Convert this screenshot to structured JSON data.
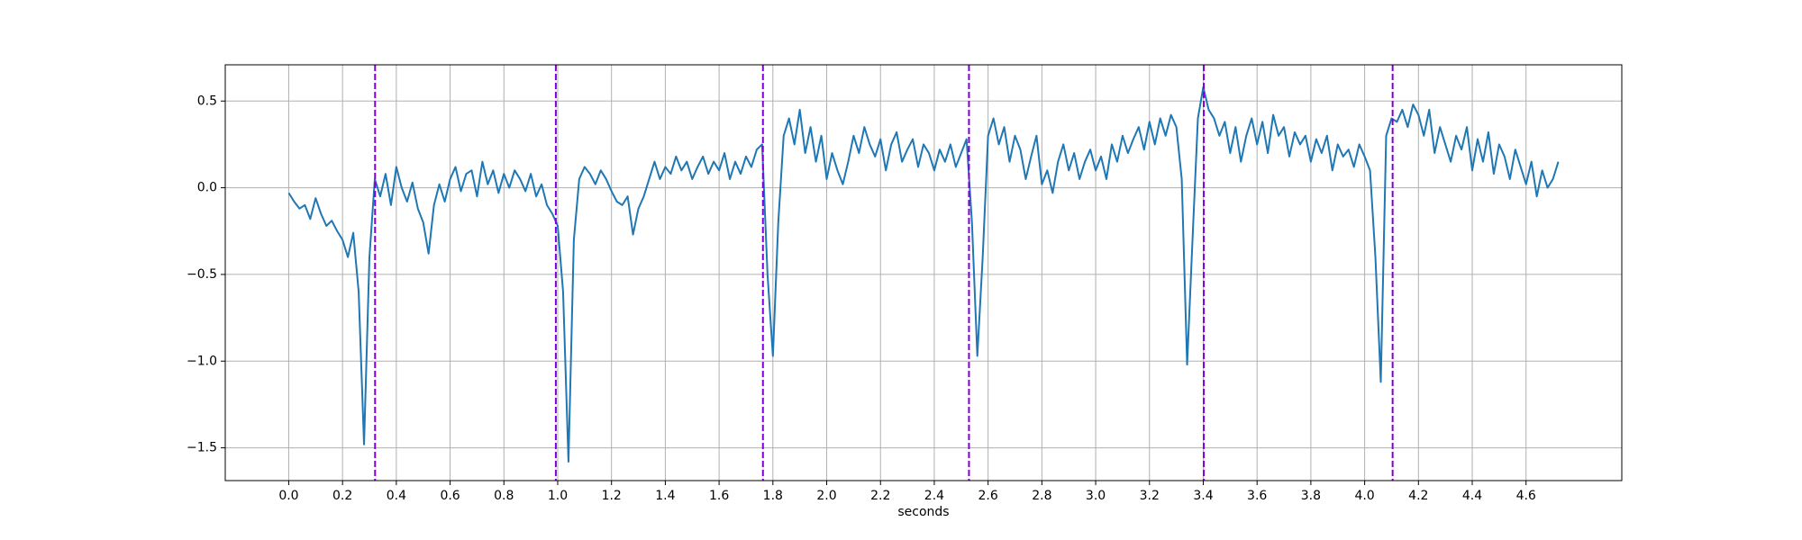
{
  "chart_data": {
    "type": "line",
    "xlabel": "seconds",
    "x": [
      0.0,
      0.02,
      0.04,
      0.06,
      0.08,
      0.1,
      0.12,
      0.14,
      0.16,
      0.18,
      0.2,
      0.22,
      0.24,
      0.26,
      0.28,
      0.3,
      0.32,
      0.34,
      0.36,
      0.38,
      0.4,
      0.42,
      0.44,
      0.46,
      0.48,
      0.5,
      0.52,
      0.54,
      0.56,
      0.58,
      0.6,
      0.62,
      0.64,
      0.66,
      0.68,
      0.7,
      0.72,
      0.74,
      0.76,
      0.78,
      0.8,
      0.82,
      0.84,
      0.86,
      0.88,
      0.9,
      0.92,
      0.94,
      0.96,
      0.98,
      1.0,
      1.02,
      1.04,
      1.06,
      1.08,
      1.1,
      1.12,
      1.14,
      1.16,
      1.18,
      1.2,
      1.22,
      1.24,
      1.26,
      1.28,
      1.3,
      1.32,
      1.34,
      1.36,
      1.38,
      1.4,
      1.42,
      1.44,
      1.46,
      1.48,
      1.5,
      1.52,
      1.54,
      1.56,
      1.58,
      1.6,
      1.62,
      1.64,
      1.66,
      1.68,
      1.7,
      1.72,
      1.74,
      1.76,
      1.78,
      1.8,
      1.82,
      1.84,
      1.86,
      1.88,
      1.9,
      1.92,
      1.94,
      1.96,
      1.98,
      2.0,
      2.02,
      2.04,
      2.06,
      2.08,
      2.1,
      2.12,
      2.14,
      2.16,
      2.18,
      2.2,
      2.22,
      2.24,
      2.26,
      2.28,
      2.3,
      2.32,
      2.34,
      2.36,
      2.38,
      2.4,
      2.42,
      2.44,
      2.46,
      2.48,
      2.5,
      2.52,
      2.54,
      2.56,
      2.58,
      2.6,
      2.62,
      2.64,
      2.66,
      2.68,
      2.7,
      2.72,
      2.74,
      2.76,
      2.78,
      2.8,
      2.82,
      2.84,
      2.86,
      2.88,
      2.9,
      2.92,
      2.94,
      2.96,
      2.98,
      3.0,
      3.02,
      3.04,
      3.06,
      3.08,
      3.1,
      3.12,
      3.14,
      3.16,
      3.18,
      3.2,
      3.22,
      3.24,
      3.26,
      3.28,
      3.3,
      3.32,
      3.34,
      3.36,
      3.38,
      3.4,
      3.42,
      3.44,
      3.46,
      3.48,
      3.5,
      3.52,
      3.54,
      3.56,
      3.58,
      3.6,
      3.62,
      3.64,
      3.66,
      3.68,
      3.7,
      3.72,
      3.74,
      3.76,
      3.78,
      3.8,
      3.82,
      3.84,
      3.86,
      3.88,
      3.9,
      3.92,
      3.94,
      3.96,
      3.98,
      4.0,
      4.02,
      4.04,
      4.06,
      4.08,
      4.1,
      4.12,
      4.14,
      4.16,
      4.18,
      4.2,
      4.22,
      4.24,
      4.26,
      4.28,
      4.3,
      4.32,
      4.34,
      4.36,
      4.38,
      4.4,
      4.42,
      4.44,
      4.46,
      4.48,
      4.5,
      4.52,
      4.54,
      4.56,
      4.58,
      4.6,
      4.62,
      4.64,
      4.66,
      4.68,
      4.7,
      4.72
    ],
    "series": [
      {
        "color": "#1f77b4",
        "values": [
          -0.03,
          -0.08,
          -0.12,
          -0.1,
          -0.18,
          -0.06,
          -0.15,
          -0.22,
          -0.19,
          -0.25,
          -0.3,
          -0.4,
          -0.26,
          -0.6,
          -1.48,
          -0.4,
          0.05,
          -0.05,
          0.08,
          -0.1,
          0.12,
          0.0,
          -0.08,
          0.03,
          -0.12,
          -0.2,
          -0.38,
          -0.1,
          0.02,
          -0.08,
          0.05,
          0.12,
          -0.02,
          0.08,
          0.1,
          -0.05,
          0.15,
          0.02,
          0.1,
          -0.03,
          0.08,
          0.0,
          0.1,
          0.05,
          -0.02,
          0.08,
          -0.05,
          0.02,
          -0.1,
          -0.15,
          -0.22,
          -0.6,
          -1.58,
          -0.3,
          0.05,
          0.12,
          0.08,
          0.02,
          0.1,
          0.05,
          -0.02,
          -0.08,
          -0.1,
          -0.05,
          -0.27,
          -0.12,
          -0.05,
          0.05,
          0.15,
          0.05,
          0.12,
          0.08,
          0.18,
          0.1,
          0.15,
          0.05,
          0.12,
          0.18,
          0.08,
          0.15,
          0.1,
          0.2,
          0.05,
          0.15,
          0.08,
          0.18,
          0.12,
          0.22,
          0.25,
          -0.5,
          -0.97,
          -0.2,
          0.3,
          0.4,
          0.25,
          0.45,
          0.2,
          0.35,
          0.15,
          0.3,
          0.05,
          0.2,
          0.1,
          0.02,
          0.15,
          0.3,
          0.2,
          0.35,
          0.25,
          0.18,
          0.28,
          0.1,
          0.25,
          0.32,
          0.15,
          0.22,
          0.28,
          0.12,
          0.25,
          0.2,
          0.1,
          0.22,
          0.15,
          0.25,
          0.12,
          0.2,
          0.28,
          -0.2,
          -0.97,
          -0.4,
          0.3,
          0.4,
          0.25,
          0.35,
          0.15,
          0.3,
          0.22,
          0.05,
          0.18,
          0.3,
          0.02,
          0.1,
          -0.03,
          0.15,
          0.25,
          0.1,
          0.2,
          0.05,
          0.15,
          0.22,
          0.1,
          0.18,
          0.05,
          0.25,
          0.15,
          0.3,
          0.2,
          0.28,
          0.35,
          0.22,
          0.38,
          0.25,
          0.4,
          0.3,
          0.42,
          0.35,
          0.05,
          -1.02,
          -0.3,
          0.4,
          0.58,
          0.45,
          0.4,
          0.3,
          0.38,
          0.2,
          0.35,
          0.15,
          0.3,
          0.4,
          0.25,
          0.38,
          0.2,
          0.42,
          0.3,
          0.35,
          0.18,
          0.32,
          0.25,
          0.3,
          0.15,
          0.28,
          0.2,
          0.3,
          0.1,
          0.25,
          0.18,
          0.22,
          0.12,
          0.25,
          0.18,
          0.1,
          -0.4,
          -1.12,
          0.3,
          0.4,
          0.38,
          0.45,
          0.35,
          0.48,
          0.42,
          0.3,
          0.45,
          0.2,
          0.35,
          0.25,
          0.15,
          0.3,
          0.22,
          0.35,
          0.1,
          0.28,
          0.15,
          0.32,
          0.08,
          0.25,
          0.18,
          0.05,
          0.22,
          0.12,
          0.02,
          0.15,
          -0.05,
          0.1,
          0.0,
          0.05,
          0.15
        ]
      }
    ],
    "vlines": {
      "x": [
        0.321,
        0.993,
        1.763,
        2.529,
        3.402,
        4.104
      ],
      "color": "#7f00d4",
      "linestyle": "dashed"
    },
    "xlim": [
      -0.236,
      4.956
    ],
    "ylim": [
      -1.689,
      0.709
    ],
    "xticks": [
      {
        "value": 0,
        "label": "0.0"
      },
      0.2,
      0.4,
      0.6,
      0.8,
      {
        "value": 1,
        "label": "1.0"
      },
      1.2,
      1.4,
      1.6,
      1.8,
      {
        "value": 2,
        "label": "2.0"
      },
      2.2,
      2.4,
      2.6,
      2.8,
      {
        "value": 3,
        "label": "3.0"
      },
      3.2,
      3.4,
      3.6,
      3.8,
      {
        "value": 4,
        "label": "4.0"
      },
      4.2,
      4.4,
      4.6
    ],
    "yticks": [
      {
        "value": -1.5,
        "label": "−1.5"
      },
      {
        "value": -1,
        "label": "−1.0"
      },
      {
        "value": -0.5,
        "label": "−0.5"
      },
      {
        "value": 0,
        "label": "0.0"
      },
      0.5
    ],
    "grid": true
  }
}
